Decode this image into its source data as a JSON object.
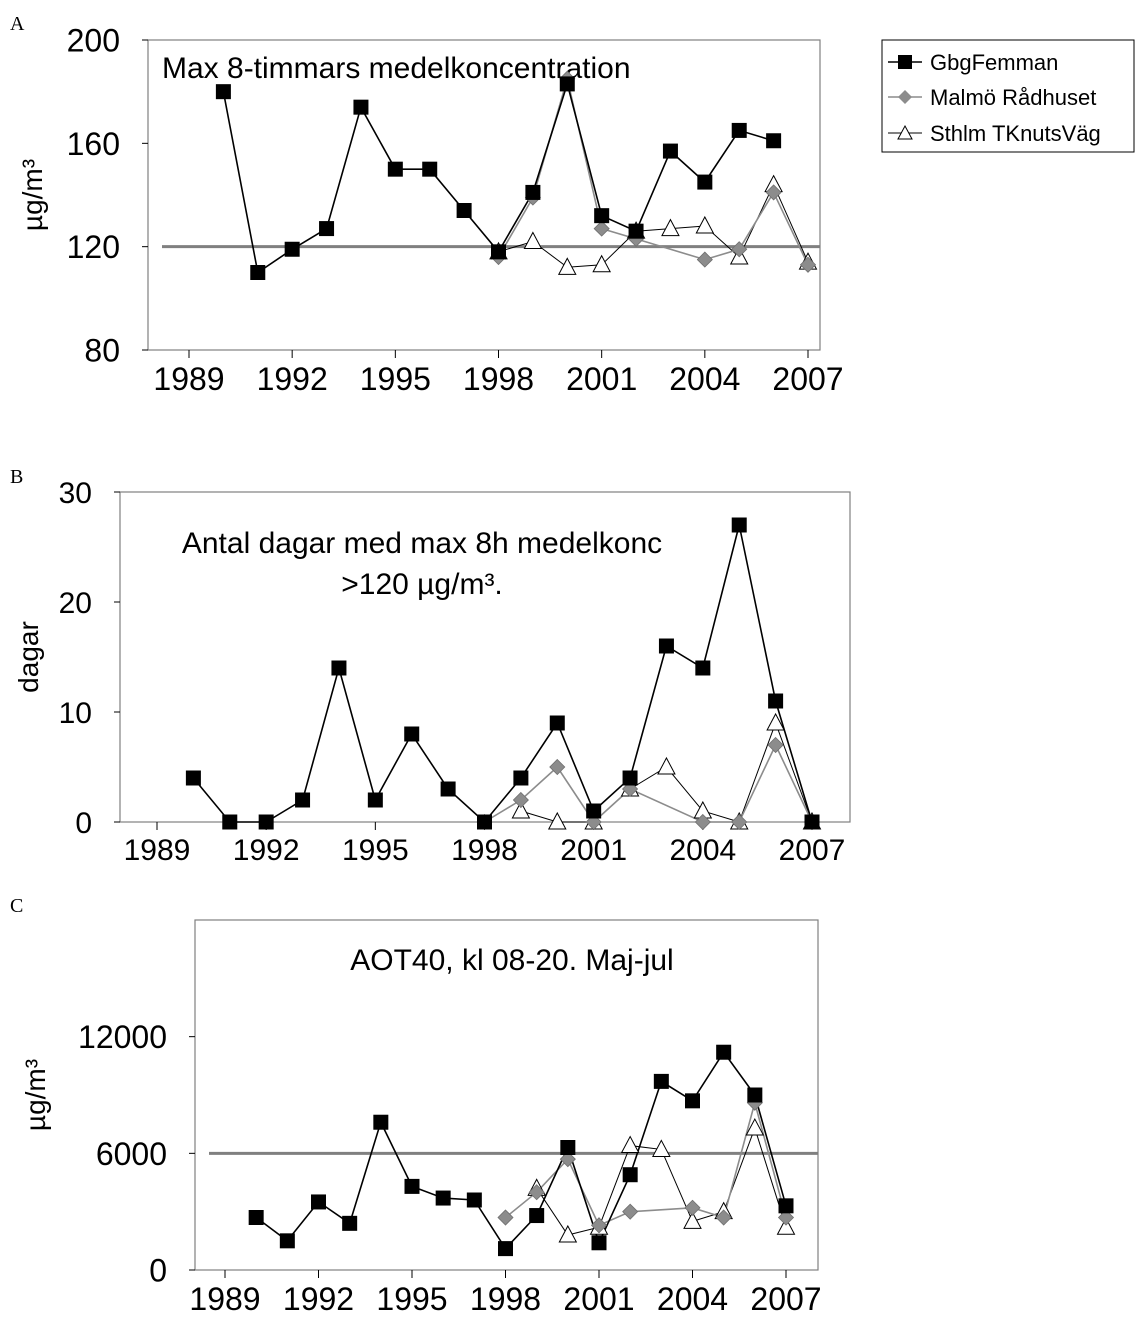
{
  "legend": {
    "entries": [
      {
        "name": "GbgFemman",
        "color": "#000000",
        "marker": "square"
      },
      {
        "name": "Malmö Rådhuset",
        "color": "#8c8c8c",
        "marker": "diamond"
      },
      {
        "name": "Sthlm TKnutsVäg",
        "color": "#000000",
        "marker": "triangle-open"
      }
    ],
    "placement": "top-right"
  },
  "chart_data": [
    {
      "panel": "A",
      "type": "line",
      "title": "Max 8-timmars medelkoncentration",
      "ylabel": "µg/m³",
      "xlim": [
        1989,
        2007
      ],
      "ylim": [
        80,
        200
      ],
      "xticks": [
        "1989",
        "1992",
        "1995",
        "1998",
        "2001",
        "2004",
        "2007"
      ],
      "yticks": [
        "80",
        "120",
        "160",
        "200"
      ],
      "reference_line": 120,
      "series": [
        {
          "name": "GbgFemman",
          "x": [
            1990,
            1991,
            1992,
            1993,
            1994,
            1995,
            1996,
            1997,
            1998,
            1999,
            2000,
            2001,
            2002,
            2003,
            2004,
            2005,
            2006
          ],
          "values": [
            180,
            110,
            119,
            127,
            174,
            150,
            150,
            134,
            118,
            141,
            183,
            132,
            126,
            157,
            145,
            165,
            161
          ]
        },
        {
          "name": "Malmö Rådhuset",
          "x": [
            1998,
            1999,
            2000,
            2001,
            2002,
            2004,
            2005,
            2006,
            2007
          ],
          "values": [
            116,
            139,
            185,
            127,
            123,
            115,
            119,
            141,
            113
          ]
        },
        {
          "name": "Sthlm TKnutsVäg",
          "x": [
            1998,
            1999,
            2000,
            2001,
            2002,
            2003,
            2004,
            2005,
            2006,
            2007
          ],
          "values": [
            118,
            122,
            112,
            113,
            126,
            127,
            128,
            116,
            144,
            114
          ]
        }
      ]
    },
    {
      "panel": "B",
      "type": "line",
      "title": "Antal dagar med max 8h medelkonc",
      "title_line2": ">120 µg/m³.",
      "ylabel": "dagar",
      "xlim": [
        1989,
        2007
      ],
      "ylim": [
        0,
        30
      ],
      "xticks": [
        "1989",
        "1992",
        "1995",
        "1998",
        "2001",
        "2004",
        "2007"
      ],
      "yticks": [
        "0",
        "10",
        "20",
        "30"
      ],
      "series": [
        {
          "name": "GbgFemman",
          "x": [
            1990,
            1991,
            1992,
            1993,
            1994,
            1995,
            1996,
            1997,
            1998,
            1999,
            2000,
            2001,
            2002,
            2003,
            2004,
            2005,
            2006,
            2007
          ],
          "values": [
            4,
            0,
            0,
            2,
            14,
            2,
            8,
            3,
            0,
            4,
            9,
            1,
            4,
            16,
            14,
            27,
            11,
            0
          ]
        },
        {
          "name": "Malmö Rådhuset",
          "x": [
            1998,
            1999,
            2000,
            2001,
            2002,
            2004,
            2005,
            2006,
            2007
          ],
          "values": [
            0,
            2,
            5,
            0,
            3,
            0,
            0,
            7,
            0
          ]
        },
        {
          "name": "Sthlm TKnutsVäg",
          "x": [
            1999,
            2000,
            2001,
            2002,
            2003,
            2004,
            2005,
            2006,
            2007
          ],
          "values": [
            1,
            0,
            0,
            3,
            5,
            1,
            0,
            9,
            0
          ]
        }
      ]
    },
    {
      "panel": "C",
      "type": "line",
      "title": "AOT40, kl 08-20. Maj-jul",
      "ylabel": "µg/m³",
      "xlim": [
        1989,
        2007
      ],
      "ylim": [
        0,
        18000
      ],
      "xticks": [
        "1989",
        "1992",
        "1995",
        "1998",
        "2001",
        "2004",
        "2007"
      ],
      "yticks": [
        "0",
        "6000",
        "12000"
      ],
      "reference_line": 6000,
      "series": [
        {
          "name": "GbgFemman",
          "x": [
            1990,
            1991,
            1992,
            1993,
            1994,
            1995,
            1996,
            1997,
            1998,
            1999,
            2000,
            2001,
            2002,
            2003,
            2004,
            2005,
            2006,
            2007
          ],
          "values": [
            2700,
            1500,
            3500,
            2400,
            7600,
            4300,
            3700,
            3600,
            1100,
            2800,
            6300,
            1400,
            4900,
            9700,
            8700,
            11200,
            9000,
            3300
          ]
        },
        {
          "name": "Malmö Rådhuset",
          "x": [
            1998,
            1999,
            2000,
            2001,
            2002,
            2004,
            2005,
            2006,
            2007
          ],
          "values": [
            2700,
            4000,
            5700,
            2300,
            3000,
            3200,
            2700,
            8600,
            2700
          ]
        },
        {
          "name": "Sthlm TKnutsVäg",
          "x": [
            1999,
            2000,
            2001,
            2002,
            2003,
            2004,
            2005,
            2006,
            2007
          ],
          "values": [
            4200,
            1800,
            2200,
            6400,
            6200,
            2500,
            3000,
            7300,
            2200
          ]
        }
      ]
    }
  ],
  "panel_letters": [
    "A",
    "B",
    "C"
  ]
}
